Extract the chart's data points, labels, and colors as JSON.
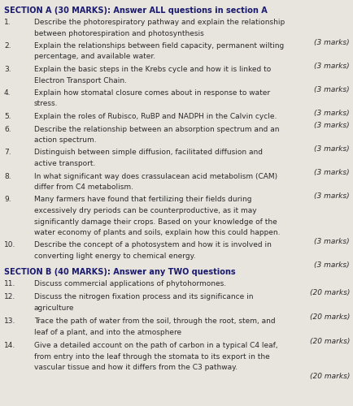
{
  "bg_color": "#e8e4de",
  "text_color": "#2a2a2a",
  "heading_color": "#1a1a6e",
  "title": "SECTION A (30 MARKS): Answer ALL questions in section A",
  "section_b_title": "SECTION B (40 MARKS): Answer any TWO questions",
  "questions": [
    {
      "num": "1.",
      "text": "Describe the photorespiratory pathway and explain the relationship between photorespiration and photosynthesis",
      "marks": "(3 marks)"
    },
    {
      "num": "2.",
      "text": "Explain the relationships between field capacity, permanent wilting percentage, and available water.",
      "marks": "(3 marks)"
    },
    {
      "num": "3.",
      "text": "Explain the basic steps in the Krebs cycle and how it is linked to Electron Transport Chain.",
      "marks": "(3 marks)"
    },
    {
      "num": "4.",
      "text": "Explain how stomatal closure comes about in response to water stress.",
      "marks": "(3 marks)"
    },
    {
      "num": "5.",
      "text": "Explain the roles of Rubisco, RuBP and NADPH in the Calvin cycle.",
      "marks": "(3 marks)"
    },
    {
      "num": "6.",
      "text": "Describe the relationship between an absorption spectrum and an action spectrum.",
      "marks": "(3 marks)"
    },
    {
      "num": "7.",
      "text": "Distinguish between simple diffusion, facilitated diffusion and active transport.",
      "marks": "(3 marks)"
    },
    {
      "num": "8.",
      "text": "In what significant way does crassulacean acid metabolism (CAM) differ from C4 metabolism.",
      "marks": "(3 marks)"
    },
    {
      "num": "9.",
      "text": "Many farmers have found that fertilizing their fields during excessively dry periods can be counterproductive, as it may significantly damage their crops. Based on your knowledge of the water economy of plants and soils, explain how this could happen.",
      "marks": "(3 marks)"
    },
    {
      "num": "10.",
      "text": "Describe the concept of a photosystem and how it is involved in converting light energy to chemical energy.",
      "marks": "(3 marks)"
    }
  ],
  "section_b_questions": [
    {
      "num": "11.",
      "text": "Discuss commercial applications of phytohormones.",
      "marks": "(20 marks)"
    },
    {
      "num": "12.",
      "text": "Discuss the nitrogen fixation process and its significance in agriculture",
      "marks": "(20 marks)"
    },
    {
      "num": "13.",
      "text": "Trace the path of water from the soil, through the root, stem, and leaf of a plant, and into the atmosphere",
      "marks": "(20 marks)"
    },
    {
      "num": "14.",
      "text": "Give a detailed account on the path of carbon in a typical C4 leaf, from entry into the leaf through the stomata to its export in the vascular tissue and how it differs from the C3 pathway.",
      "marks": "(20 marks)"
    }
  ]
}
